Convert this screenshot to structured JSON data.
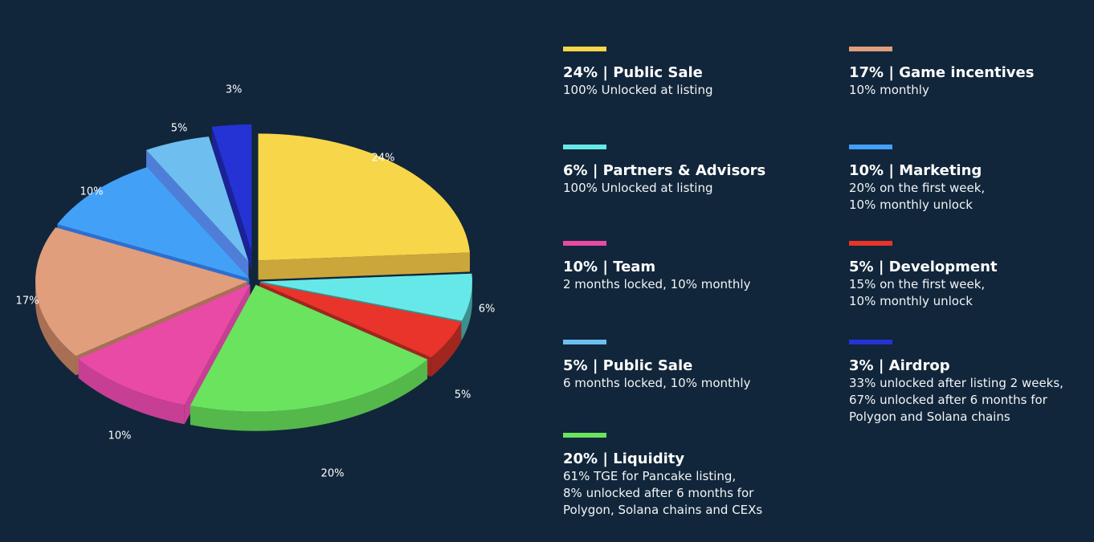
{
  "chart_data": {
    "type": "pie",
    "style": "3d-exploded",
    "title": "",
    "slices": [
      {
        "label": "24%",
        "value": 24,
        "color": "#f8d64a",
        "side": "#cba63a"
      },
      {
        "label": "6%",
        "value": 6,
        "color": "#67e8e8",
        "side": "#3b918c"
      },
      {
        "label": "5%",
        "value": 5,
        "color": "#e8342a",
        "side": "#a0261f"
      },
      {
        "label": "20%",
        "value": 20,
        "color": "#6ae35e",
        "side": "#54b84a"
      },
      {
        "label": "10%",
        "value": 10,
        "color": "#e94aa5",
        "side": "#c63f94"
      },
      {
        "label": "17%",
        "value": 17,
        "color": "#e09e7c",
        "side": "#a86f54"
      },
      {
        "label": "10%",
        "value": 10,
        "color": "#42a0f7",
        "side": "#2c6fd2"
      },
      {
        "label": "5%",
        "value": 5,
        "color": "#6ebff0",
        "side": "#4f7ed8"
      },
      {
        "label": "3%",
        "value": 3,
        "color": "#2533d4",
        "side": "#1b2296"
      }
    ]
  },
  "legend": [
    {
      "color": "#f8d64a",
      "title": "24% | Public Sale",
      "desc": [
        "100% Unlocked at listing"
      ]
    },
    {
      "color": "#e09e7c",
      "title": "17% | Game incentives",
      "desc": [
        "10% monthly"
      ]
    },
    {
      "color": "#67e8e8",
      "title": "6% | Partners & Advisors",
      "desc": [
        "100% Unlocked at listing"
      ]
    },
    {
      "color": "#42a0f7",
      "title": "10% | Marketing",
      "desc": [
        "20% on the first week,",
        "10% monthly unlock"
      ]
    },
    {
      "color": "#e94aa5",
      "title": "10% | Team",
      "desc": [
        "2 months locked, 10% monthly"
      ]
    },
    {
      "color": "#e8342a",
      "title": "5% | Development",
      "desc": [
        "15% on the first week,",
        "10% monthly unlock"
      ]
    },
    {
      "color": "#6ebff0",
      "title": "5% | Public Sale",
      "desc": [
        "6 months locked, 10% monthly"
      ]
    },
    {
      "color": "#2533d4",
      "title": "3% | Airdrop",
      "desc": [
        "33% unlocked after listing 2 weeks,",
        "67% unlocked after 6 months for",
        "Polygon and Solana chains"
      ]
    },
    {
      "color": "#6ae35e",
      "title": "20% | Liquidity",
      "desc": [
        "61% TGE for Pancake listing,",
        "8% unlocked after 6 months for",
        "Polygon, Solana chains and CEXs"
      ]
    }
  ]
}
